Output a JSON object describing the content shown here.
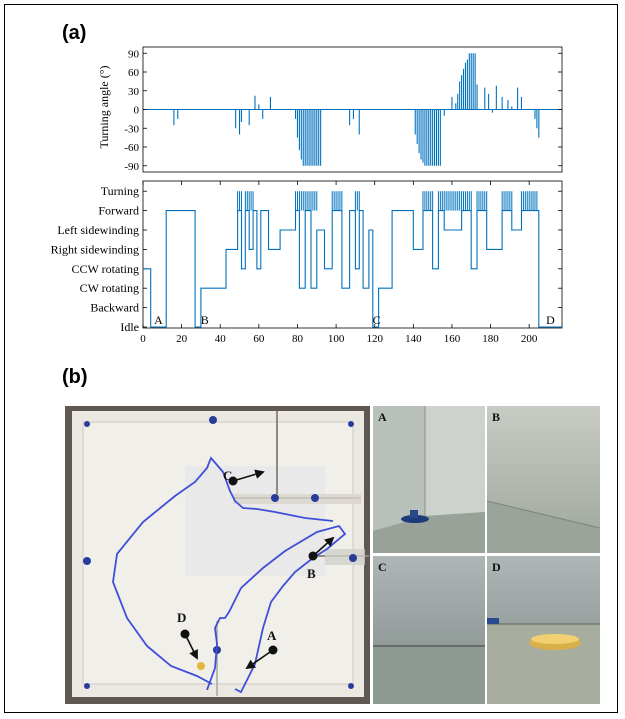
{
  "figure": {
    "panel_a_label": "(a)",
    "panel_b_label": "(b)"
  },
  "chart_data": [
    {
      "type": "bar",
      "ylabel": "Turning angle (°)",
      "ylim": [
        -100,
        100
      ],
      "yticks": [
        90,
        60,
        30,
        0,
        -30,
        -60,
        -90
      ],
      "xlim": [
        0,
        217
      ],
      "x": [
        16,
        18,
        48,
        50,
        51,
        55,
        58,
        60,
        62,
        66,
        79,
        80,
        81,
        82,
        83,
        84,
        85,
        86,
        87,
        88,
        89,
        90,
        91,
        92,
        107,
        109,
        112,
        141,
        142,
        143,
        144,
        145,
        146,
        147,
        148,
        149,
        150,
        151,
        152,
        153,
        154,
        156,
        160,
        162,
        163,
        164,
        165,
        166,
        167,
        168,
        169,
        170,
        171,
        172,
        173,
        177,
        179,
        181,
        183,
        186,
        189,
        191,
        194,
        196,
        203,
        204,
        205
      ],
      "values": [
        -25,
        -15,
        -30,
        -40,
        -20,
        -25,
        22,
        8,
        -15,
        20,
        -15,
        -45,
        -65,
        -80,
        -90,
        -90,
        -90,
        -90,
        -90,
        -90,
        -90,
        -90,
        -90,
        -90,
        -25,
        -15,
        -40,
        -40,
        -55,
        -70,
        -80,
        -85,
        -90,
        -90,
        -90,
        -90,
        -90,
        -90,
        -90,
        -90,
        -90,
        -10,
        20,
        10,
        25,
        45,
        55,
        65,
        75,
        80,
        90,
        90,
        90,
        90,
        40,
        35,
        25,
        -5,
        38,
        20,
        15,
        5,
        35,
        20,
        -15,
        -30,
        -45
      ]
    },
    {
      "type": "line",
      "step": true,
      "categories": [
        "Idle",
        "Backward",
        "CW rotating",
        "CCW rotating",
        "Right sidewinding",
        "Left sidewinding",
        "Forward",
        "Turning"
      ],
      "xlim": [
        0,
        217
      ],
      "xticks": [
        0,
        20,
        40,
        60,
        80,
        100,
        120,
        140,
        160,
        180,
        200
      ],
      "annotations": [
        "A",
        "B",
        "C",
        "D"
      ],
      "x": [
        0,
        4,
        4,
        12,
        12,
        27,
        27,
        30,
        30,
        43,
        43,
        49,
        49,
        51,
        51,
        53,
        53,
        55,
        55,
        57,
        57,
        59,
        59,
        61,
        61,
        65,
        65,
        71,
        71,
        79,
        79,
        81,
        81,
        84,
        84,
        87,
        87,
        90,
        90,
        94,
        94,
        98,
        98,
        103,
        103,
        107,
        107,
        110,
        110,
        112,
        112,
        114,
        114,
        117,
        117,
        119,
        119,
        122,
        122,
        129,
        129,
        140,
        140,
        145,
        145,
        150,
        150,
        153,
        153,
        156,
        156,
        165,
        165,
        170,
        170,
        173,
        173,
        178,
        178,
        186,
        186,
        191,
        191,
        196,
        196,
        205,
        205,
        217
      ],
      "values": [
        3,
        3,
        0,
        0,
        6,
        6,
        0,
        0,
        2,
        2,
        4,
        4,
        6,
        6,
        3,
        3,
        6,
        6,
        4,
        4,
        6,
        6,
        3,
        3,
        6,
        6,
        4,
        4,
        5,
        5,
        6,
        6,
        2,
        2,
        6,
        6,
        2,
        2,
        5,
        5,
        3,
        3,
        6,
        6,
        2,
        2,
        6,
        6,
        3,
        3,
        6,
        6,
        2,
        2,
        5,
        5,
        0,
        0,
        2,
        2,
        6,
        6,
        4,
        4,
        6,
        6,
        3,
        3,
        6,
        6,
        5,
        5,
        6,
        6,
        3,
        3,
        6,
        6,
        4,
        4,
        6,
        6,
        5,
        5,
        6,
        6,
        0,
        0
      ]
    }
  ],
  "photos": {
    "main_labels": {
      "a": "A",
      "b": "B",
      "c": "C",
      "d": "D"
    },
    "inset_labels": {
      "a": "A",
      "b": "B",
      "c": "C",
      "d": "D"
    }
  }
}
